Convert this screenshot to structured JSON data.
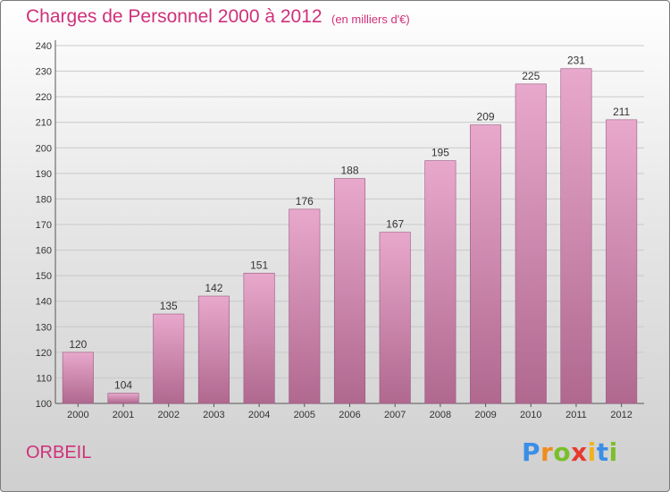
{
  "header": {
    "title": "Charges de Personnel 2000 à 2012",
    "unit": "(en milliers d'€)"
  },
  "footer": {
    "commune": "ORBEIL",
    "logo_letters": [
      {
        "char": "P",
        "color": "#3a8ee6"
      },
      {
        "char": "r",
        "color": "#f08c1e"
      },
      {
        "char": "o",
        "color": "#7abf2a"
      },
      {
        "char": "x",
        "color": "#e63b2e"
      },
      {
        "char": "i",
        "color": "#f0b31e"
      },
      {
        "char": "t",
        "color": "#3a8ee6"
      },
      {
        "char": "i",
        "color": "#7abf2a"
      }
    ]
  },
  "colors": {
    "accent": "#d0307a",
    "bar_top": "#e8a8cc",
    "bar_bottom": "#b0688f",
    "bar_border": "#9a5a80"
  },
  "chart_data": {
    "type": "bar",
    "title": "Charges de Personnel 2000 à 2012",
    "subtitle": "(en milliers d'€)",
    "categories": [
      "2000",
      "2001",
      "2002",
      "2003",
      "2004",
      "2005",
      "2006",
      "2007",
      "2008",
      "2009",
      "2010",
      "2011",
      "2012"
    ],
    "values": [
      120,
      104,
      135,
      142,
      151,
      176,
      188,
      167,
      195,
      209,
      225,
      231,
      211
    ],
    "ylim": [
      100,
      240
    ],
    "yticks": [
      100,
      110,
      120,
      130,
      140,
      150,
      160,
      170,
      180,
      190,
      200,
      210,
      220,
      230,
      240
    ],
    "xlabel": "",
    "ylabel": "",
    "grid": true,
    "data_labels": true
  }
}
